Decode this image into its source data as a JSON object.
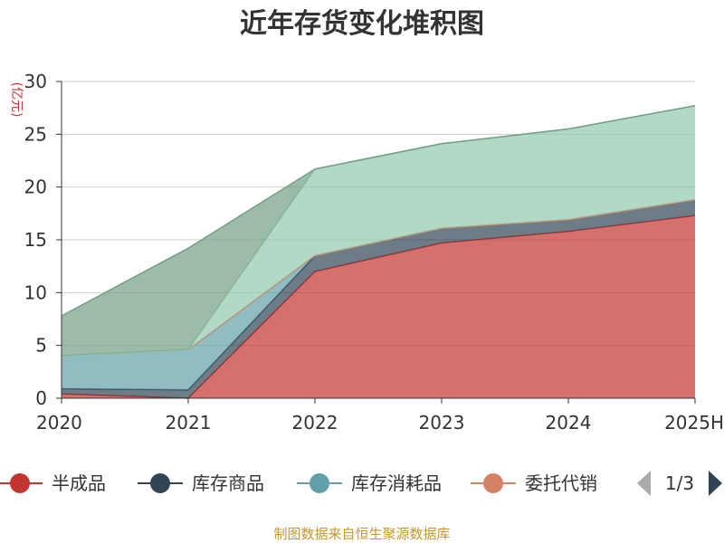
{
  "chart_data": {
    "type": "area",
    "stacked": true,
    "title": "近年存货变化堆积图",
    "ylabel": "(亿元)",
    "categories": [
      "2020",
      "2021",
      "2022",
      "2023",
      "2024",
      "2025H"
    ],
    "ylim": [
      0,
      30
    ],
    "yticks": [
      "0",
      "5",
      "10",
      "15",
      "20",
      "25",
      "30"
    ],
    "grid": true,
    "series": [
      {
        "name": "半成品",
        "color": "#c23531",
        "values": [
          0.4,
          0.0,
          12.0,
          14.7,
          15.8,
          17.3
        ]
      },
      {
        "name": "库存商品",
        "color": "#2f4554",
        "values": [
          0.5,
          0.8,
          1.5,
          1.4,
          1.1,
          1.5
        ]
      },
      {
        "name": "库存消耗品",
        "color": "#61a0a8",
        "values": [
          3.1,
          3.8,
          0.0,
          0.0,
          0.0,
          0.0
        ]
      },
      {
        "name": "委托代销",
        "color": "#d48265",
        "values": [
          0.0,
          0.0,
          0.0,
          0.0,
          0.0,
          0.0
        ]
      },
      {
        "name": "",
        "color": "#91c7ae",
        "values": [
          0.0,
          0.0,
          8.2,
          8.0,
          8.6,
          8.9
        ]
      },
      {
        "name": "",
        "color": "#749f83",
        "values": [
          3.8,
          9.6,
          0.0,
          0.0,
          0.0,
          0.0
        ]
      }
    ],
    "legend": {
      "position": "bottom",
      "items": [
        "半成品",
        "库存商品",
        "库存消耗品",
        "委托代销"
      ],
      "page": "1/3"
    },
    "source": "制图数据来自恒生聚源数据库"
  }
}
